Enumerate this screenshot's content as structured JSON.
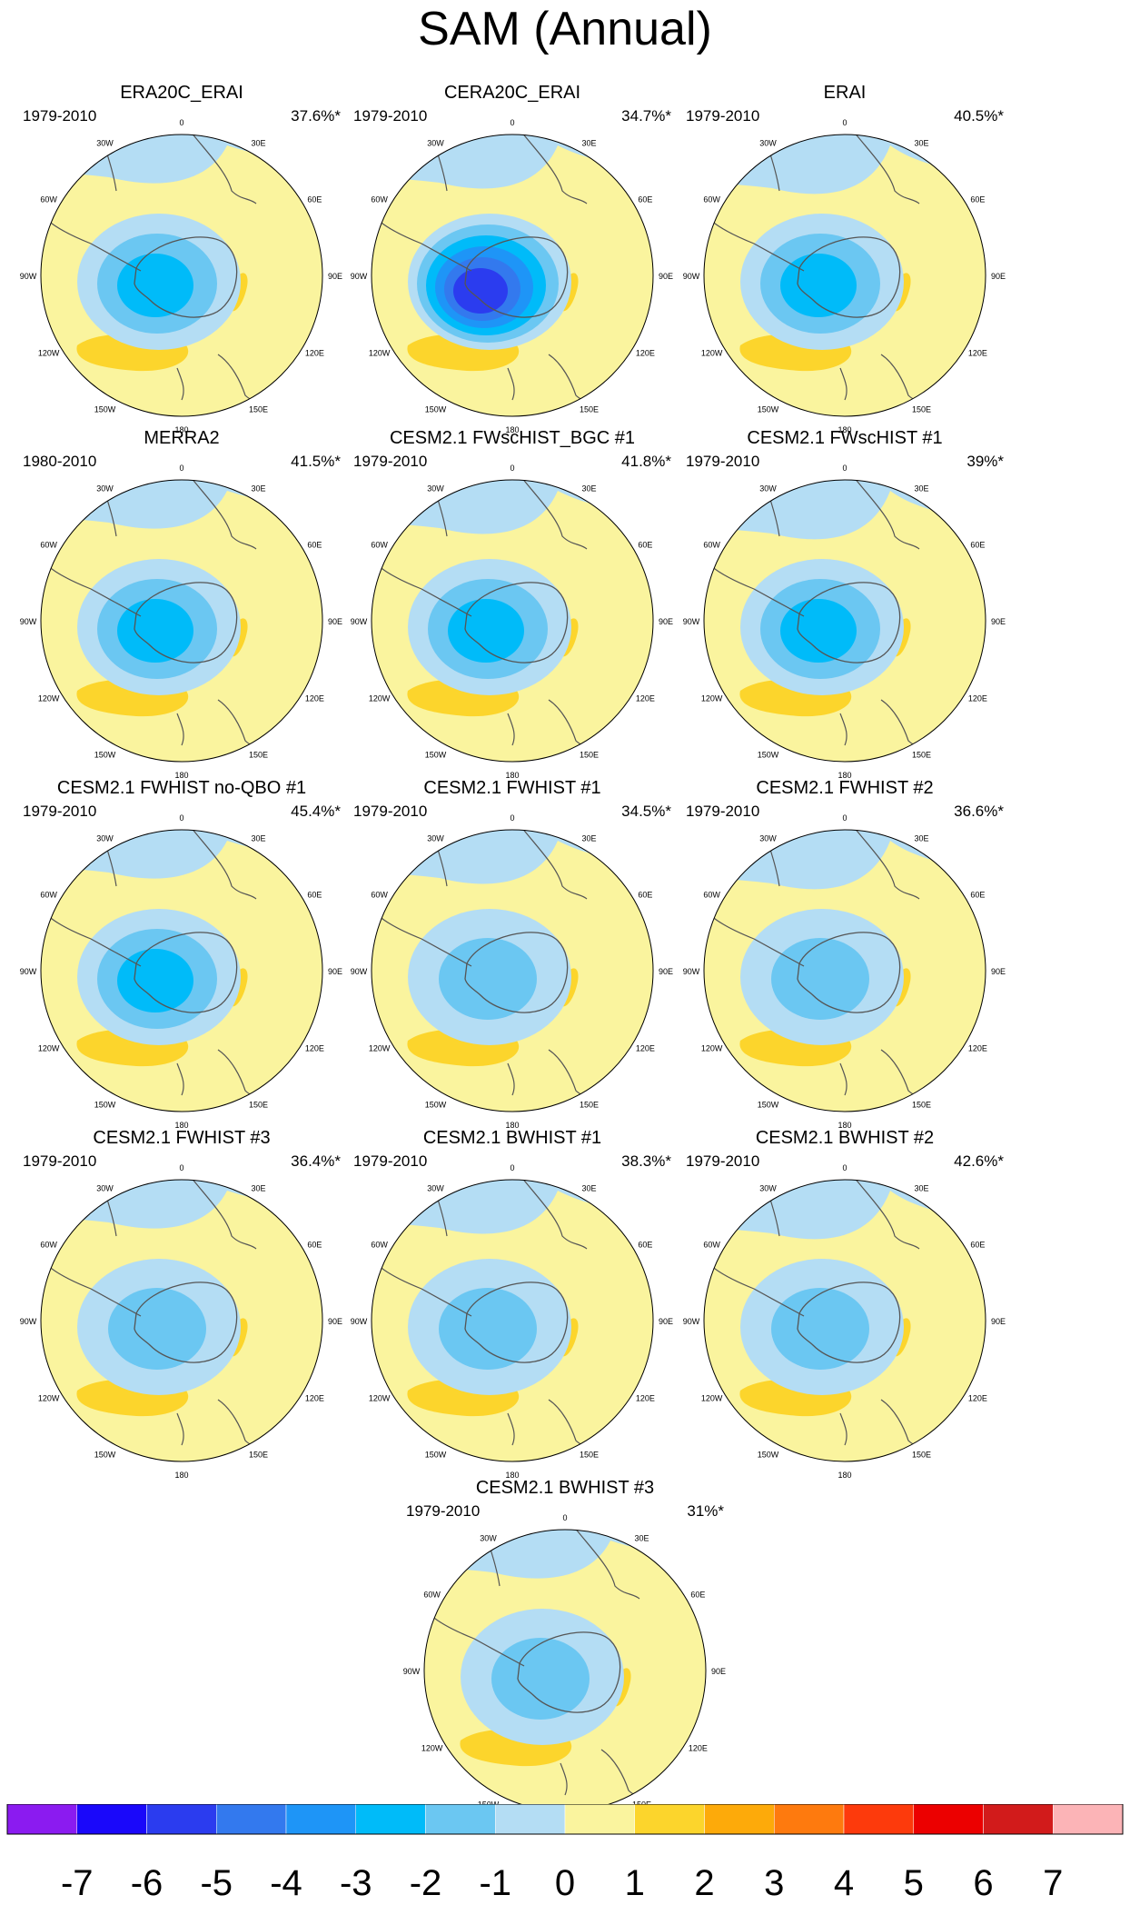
{
  "title": "SAM (Annual)",
  "longitude_labels": [
    "0",
    "30E",
    "60E",
    "90E",
    "120E",
    "150E",
    "180",
    "150W",
    "120W",
    "90W",
    "60W",
    "30W"
  ],
  "panels": [
    {
      "title": "ERA20C_ERAI",
      "period": "1979-2010",
      "percent": "37.6%*",
      "min_level": -3
    },
    {
      "title": "CERA20C_ERAI",
      "period": "1979-2010",
      "percent": "34.7%*",
      "min_level": -6
    },
    {
      "title": "ERAI",
      "period": "1979-2010",
      "percent": "40.5%*",
      "min_level": -3
    },
    {
      "title": "MERRA2",
      "period": "1980-2010",
      "percent": "41.5%*",
      "min_level": -3
    },
    {
      "title": "CESM2.1 FWscHIST_BGC #1",
      "period": "1979-2010",
      "percent": "41.8%*",
      "min_level": -3
    },
    {
      "title": "CESM2.1 FWscHIST #1",
      "period": "1979-2010",
      "percent": "39%*",
      "min_level": -3
    },
    {
      "title": "CESM2.1 FWHIST no-QBO #1",
      "period": "1979-2010",
      "percent": "45.4%*",
      "min_level": -3
    },
    {
      "title": "CESM2.1 FWHIST #1",
      "period": "1979-2010",
      "percent": "34.5%*",
      "min_level": -2
    },
    {
      "title": "CESM2.1 FWHIST #2",
      "period": "1979-2010",
      "percent": "36.6%*",
      "min_level": -2
    },
    {
      "title": "CESM2.1 FWHIST #3",
      "period": "1979-2010",
      "percent": "36.4%*",
      "min_level": -2
    },
    {
      "title": "CESM2.1 BWHIST #1",
      "period": "1979-2010",
      "percent": "38.3%*",
      "min_level": -2
    },
    {
      "title": "CESM2.1 BWHIST #2",
      "period": "1979-2010",
      "percent": "42.6%*",
      "min_level": -2
    },
    {
      "title": "CESM2.1 BWHIST #3",
      "period": "1979-2010",
      "percent": "31%*",
      "min_level": -2
    }
  ],
  "colorbar": {
    "colors": [
      "#8B1BF0",
      "#1A08FA",
      "#2B3CEF",
      "#3379EE",
      "#1E95F7",
      "#00BBF9",
      "#6BC7F2",
      "#B4DDF4",
      "#FAF49E",
      "#FCD52C",
      "#FDAA0A",
      "#FE7A0E",
      "#FD3A0C",
      "#EC0000",
      "#D21B1B",
      "#FCB4B7"
    ],
    "labels": [
      "-7",
      "-6",
      "-5",
      "-4",
      "-3",
      "-2",
      "-1",
      "0",
      "1",
      "2",
      "3",
      "4",
      "5",
      "6",
      "7"
    ]
  }
}
